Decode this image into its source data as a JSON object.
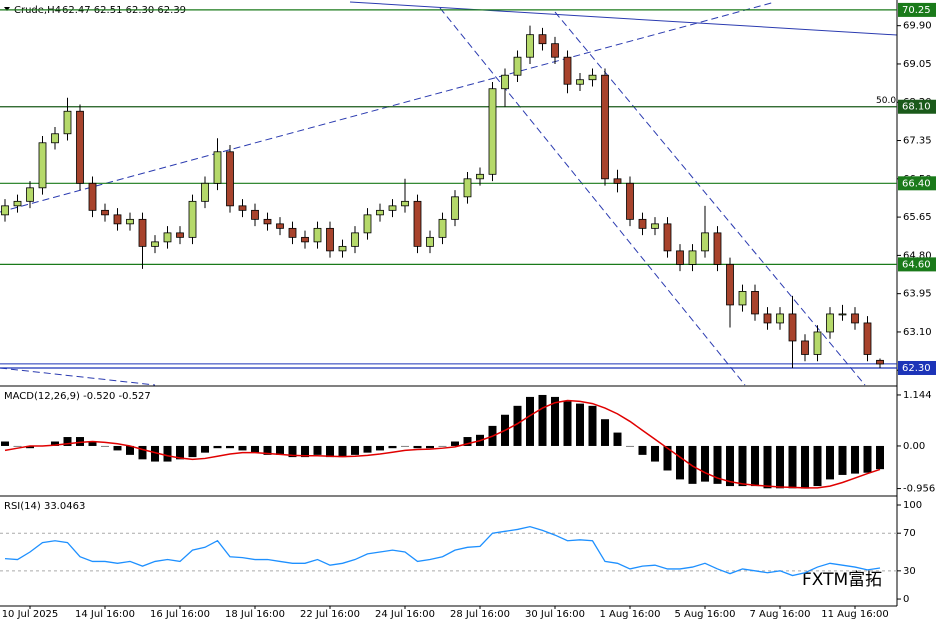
{
  "watermark": "FXTM富拓",
  "chart_data": [
    {
      "type": "candlestick",
      "title": "Crude,H4",
      "ohlc_label": "62.47 62.51 62.30 62.39",
      "categories": [
        null,
        null,
        "10 Jul 2025",
        null,
        null,
        null,
        null,
        null,
        "14 Jul 16:00",
        null,
        null,
        null,
        null,
        null,
        "16 Jul 16:00",
        null,
        null,
        null,
        null,
        null,
        "18 Jul 16:00",
        null,
        null,
        null,
        null,
        null,
        "22 Jul 16:00",
        null,
        null,
        null,
        null,
        null,
        "24 Jul 16:00",
        null,
        null,
        null,
        null,
        null,
        "28 Jul 16:00",
        null,
        null,
        null,
        null,
        null,
        "30 Jul 16:00",
        null,
        null,
        null,
        null,
        null,
        "1 Aug 16:00",
        null,
        null,
        null,
        null,
        null,
        "5 Aug 16:00",
        null,
        null,
        null,
        null,
        null,
        "7 Aug 16:00",
        null,
        null,
        null,
        null,
        null,
        "11 Aug 16:00",
        null,
        null
      ],
      "open": [
        65.7,
        65.9,
        66.0,
        66.3,
        67.3,
        67.5,
        68.0,
        66.4,
        65.8,
        65.7,
        65.5,
        65.6,
        65.0,
        65.1,
        65.3,
        65.2,
        66.0,
        66.4,
        67.1,
        65.9,
        65.8,
        65.6,
        65.5,
        65.4,
        65.2,
        65.1,
        65.4,
        64.9,
        65.0,
        65.3,
        65.7,
        65.8,
        65.9,
        66.0,
        65.0,
        65.2,
        65.6,
        66.1,
        66.5,
        66.6,
        68.5,
        68.8,
        69.2,
        69.7,
        69.5,
        69.2,
        68.6,
        68.7,
        68.8,
        66.5,
        66.4,
        65.6,
        65.4,
        65.5,
        64.9,
        64.6,
        64.9,
        65.3,
        64.6,
        63.7,
        64.0,
        63.5,
        63.3,
        63.5,
        62.9,
        62.6,
        63.1,
        63.5,
        63.5,
        63.3,
        62.47
      ],
      "high": [
        66.05,
        66.15,
        66.45,
        67.45,
        67.65,
        68.3,
        68.15,
        66.55,
        65.95,
        65.85,
        65.75,
        65.75,
        65.25,
        65.45,
        65.45,
        66.15,
        66.55,
        67.4,
        67.25,
        66.05,
        65.95,
        65.75,
        65.65,
        65.55,
        65.35,
        65.55,
        65.55,
        65.15,
        65.45,
        65.85,
        65.95,
        66.05,
        66.5,
        66.15,
        65.35,
        65.75,
        66.25,
        66.65,
        66.75,
        68.65,
        68.95,
        69.35,
        69.9,
        69.85,
        69.65,
        69.35,
        68.85,
        68.95,
        68.95,
        66.7,
        66.55,
        65.75,
        65.65,
        65.65,
        65.05,
        65.05,
        65.9,
        65.45,
        64.75,
        64.15,
        64.15,
        63.65,
        63.65,
        63.9,
        63.05,
        63.25,
        63.65,
        63.7,
        63.65,
        63.45,
        62.51
      ],
      "low": [
        65.55,
        65.75,
        65.85,
        66.15,
        67.15,
        67.35,
        66.25,
        65.65,
        65.55,
        65.35,
        65.35,
        64.5,
        64.85,
        64.95,
        65.05,
        65.05,
        65.85,
        66.25,
        65.75,
        65.65,
        65.45,
        65.35,
        65.25,
        65.05,
        64.95,
        64.95,
        64.75,
        64.75,
        64.85,
        65.15,
        65.55,
        65.65,
        65.75,
        64.85,
        64.85,
        65.05,
        65.45,
        65.95,
        66.35,
        66.45,
        68.1,
        68.65,
        69.05,
        69.35,
        69.05,
        68.4,
        68.45,
        68.55,
        66.35,
        66.2,
        65.45,
        65.25,
        65.25,
        64.75,
        64.45,
        64.45,
        64.75,
        64.45,
        63.2,
        63.55,
        63.35,
        63.15,
        63.15,
        62.3,
        62.45,
        62.45,
        62.95,
        63.35,
        63.15,
        62.45,
        62.3
      ],
      "close": [
        65.9,
        66.0,
        66.3,
        67.3,
        67.5,
        68.0,
        66.4,
        65.8,
        65.7,
        65.5,
        65.6,
        65.0,
        65.1,
        65.3,
        65.2,
        66.0,
        66.4,
        67.1,
        65.9,
        65.8,
        65.6,
        65.5,
        65.4,
        65.2,
        65.1,
        65.4,
        64.9,
        65.0,
        65.3,
        65.7,
        65.8,
        65.9,
        66.0,
        65.0,
        65.2,
        65.6,
        66.1,
        66.5,
        66.6,
        68.5,
        68.8,
        69.2,
        69.7,
        69.5,
        69.2,
        68.6,
        68.7,
        68.8,
        66.5,
        66.4,
        65.6,
        65.4,
        65.5,
        64.9,
        64.6,
        64.9,
        65.3,
        64.6,
        63.7,
        64.0,
        63.5,
        63.3,
        63.5,
        62.9,
        62.6,
        63.1,
        63.5,
        63.5,
        63.3,
        62.6,
        62.39
      ],
      "up_color": "#b5d96a",
      "down_color": "#a8432c",
      "ylim": [
        61.9,
        70.47
      ],
      "yticks": [
        {
          "value": 69.9,
          "label": "69.90"
        },
        {
          "value": 69.05,
          "label": "69.05"
        },
        {
          "value": 68.2,
          "label": "68.20"
        },
        {
          "value": 67.35,
          "label": "67.35"
        },
        {
          "value": 66.5,
          "label": "66.50"
        },
        {
          "value": 65.65,
          "label": "65.65"
        },
        {
          "value": 64.8,
          "label": "64.80"
        },
        {
          "value": 63.95,
          "label": "63.95"
        },
        {
          "value": 63.1,
          "label": "63.10"
        },
        {
          "value": 62.25,
          "label": "62.25"
        }
      ],
      "levels": [
        {
          "value": 70.25,
          "label": "70.25",
          "color": "#1a7a1a"
        },
        {
          "value": 68.1,
          "label": "68.10",
          "color": "#1a5a1a"
        },
        {
          "value": 66.4,
          "label": "66.40",
          "color": "#1a7a1a"
        },
        {
          "value": 64.6,
          "label": "64.60",
          "color": "#1a7a1a"
        },
        {
          "value": 62.3,
          "label": "62.30",
          "color": "#1c34b8"
        }
      ],
      "level_note": "50.0"
    },
    {
      "type": "bar",
      "title": "MACD(12,26,9) -0.520 -0.527",
      "color": "#000000",
      "signal_color": "#e00000",
      "values": [
        0.1,
        0.0,
        -0.05,
        0.0,
        0.1,
        0.2,
        0.2,
        0.1,
        0.0,
        -0.1,
        -0.2,
        -0.3,
        -0.35,
        -0.35,
        -0.3,
        -0.25,
        -0.15,
        -0.05,
        -0.05,
        -0.1,
        -0.15,
        -0.2,
        -0.2,
        -0.25,
        -0.25,
        -0.2,
        -0.25,
        -0.25,
        -0.2,
        -0.15,
        -0.1,
        -0.05,
        0.0,
        -0.05,
        -0.05,
        0.0,
        0.1,
        0.2,
        0.25,
        0.45,
        0.7,
        0.9,
        1.1,
        1.144,
        1.1,
        1.0,
        0.95,
        0.9,
        0.6,
        0.3,
        0.0,
        -0.2,
        -0.35,
        -0.55,
        -0.75,
        -0.85,
        -0.8,
        -0.85,
        -0.9,
        -0.9,
        -0.9,
        -0.95,
        -0.95,
        -0.95,
        -0.956,
        -0.9,
        -0.75,
        -0.65,
        -0.62,
        -0.6,
        -0.52
      ],
      "signal": [
        -0.1,
        -0.05,
        0.0,
        0.0,
        0.02,
        0.05,
        0.08,
        0.1,
        0.08,
        0.05,
        0.0,
        -0.08,
        -0.15,
        -0.22,
        -0.27,
        -0.3,
        -0.28,
        -0.23,
        -0.18,
        -0.15,
        -0.15,
        -0.17,
        -0.19,
        -0.21,
        -0.22,
        -0.22,
        -0.23,
        -0.24,
        -0.23,
        -0.21,
        -0.18,
        -0.14,
        -0.1,
        -0.08,
        -0.07,
        -0.05,
        -0.02,
        0.05,
        0.12,
        0.22,
        0.35,
        0.5,
        0.68,
        0.85,
        0.97,
        1.02,
        1.0,
        0.95,
        0.85,
        0.72,
        0.55,
        0.35,
        0.15,
        -0.05,
        -0.25,
        -0.45,
        -0.6,
        -0.72,
        -0.8,
        -0.85,
        -0.88,
        -0.9,
        -0.92,
        -0.93,
        -0.94,
        -0.94,
        -0.9,
        -0.82,
        -0.72,
        -0.62,
        -0.527
      ],
      "ylim": [
        -1.1,
        1.3
      ],
      "yticks": [
        1.144,
        {
          "value": 0,
          "label": "0.00"
        },
        -0.956
      ]
    },
    {
      "type": "line",
      "title": "RSI(14) 33.0463",
      "color": "#1e90ff",
      "values": [
        43,
        42,
        50,
        60,
        62,
        60,
        45,
        40,
        40,
        38,
        40,
        35,
        40,
        42,
        40,
        52,
        55,
        62,
        45,
        44,
        42,
        42,
        40,
        38,
        38,
        42,
        36,
        38,
        42,
        48,
        50,
        52,
        50,
        40,
        42,
        45,
        52,
        55,
        56,
        70,
        72,
        74,
        77,
        73,
        68,
        62,
        63,
        62,
        40,
        38,
        32,
        35,
        36,
        32,
        32,
        34,
        38,
        32,
        27,
        32,
        30,
        28,
        30,
        25,
        28,
        34,
        38,
        36,
        34,
        31,
        33.0463
      ],
      "ylim": [
        -7.4,
        108.5
      ],
      "yticks": [
        100,
        70,
        30,
        0
      ],
      "dashed_levels": [
        70,
        30
      ]
    }
  ]
}
